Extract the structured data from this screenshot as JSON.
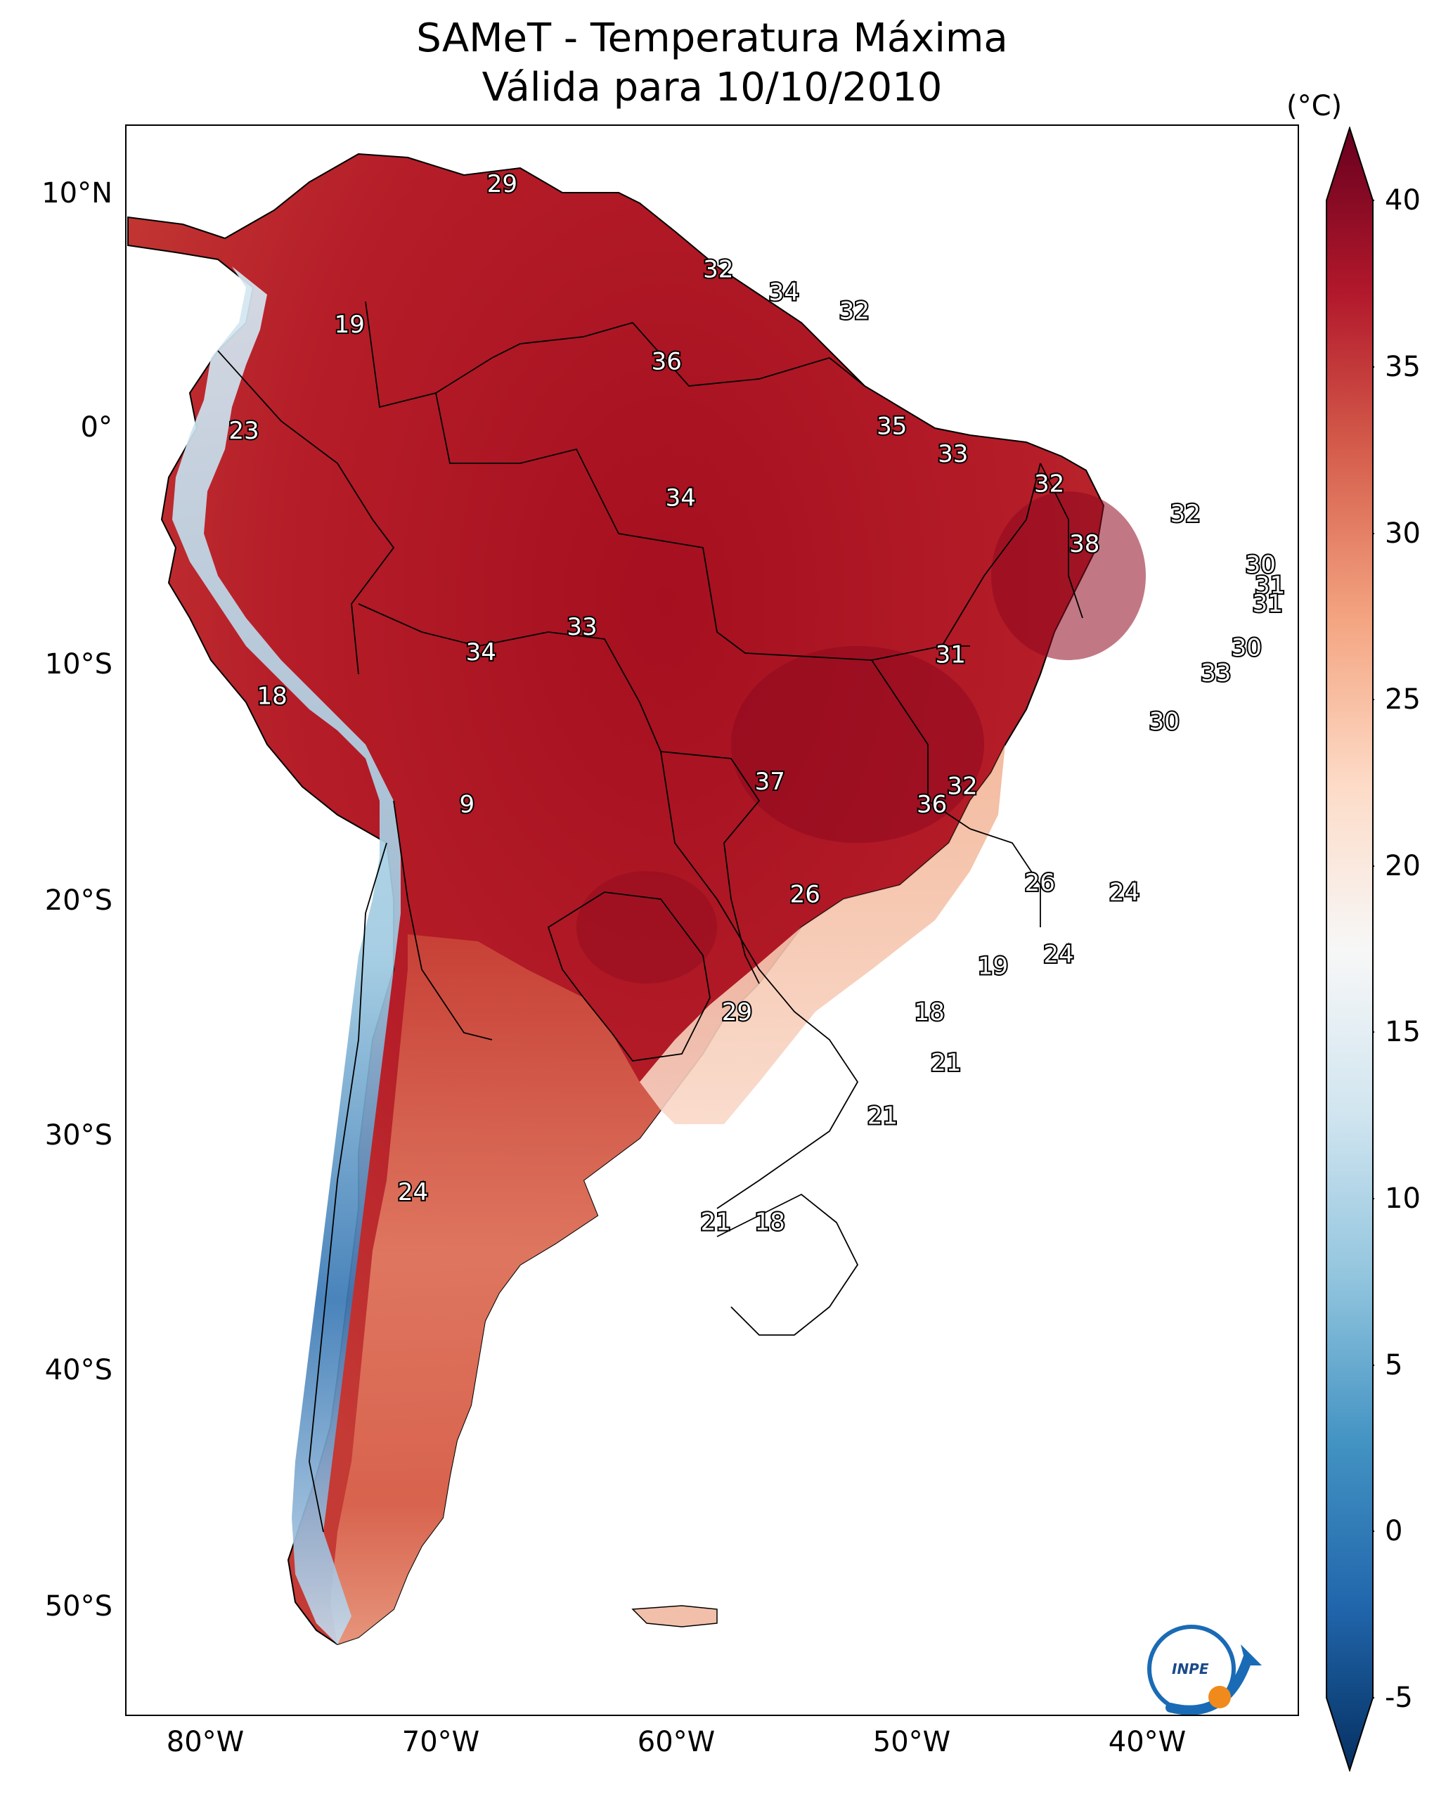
{
  "title": {
    "line1": "SAMeT - Temperatura Máxima",
    "line2": "Válida para 10/10/2010"
  },
  "colorbar": {
    "unit": "(°C)",
    "range": [
      -5,
      40
    ],
    "ticks": [
      "40",
      "35",
      "30",
      "25",
      "20",
      "15",
      "10",
      "5",
      "0",
      "-5"
    ],
    "colors": [
      "#053061",
      "#2166ac",
      "#4393c3",
      "#92c5de",
      "#d1e5f0",
      "#f7f7f7",
      "#fddbc7",
      "#f4a582",
      "#d6604d",
      "#b2182b",
      "#67001f"
    ]
  },
  "latitude_labels": [
    "10°N",
    "0°",
    "10°S",
    "20°S",
    "30°S",
    "40°S",
    "50°S"
  ],
  "longitude_labels": [
    "80°W",
    "70°W",
    "60°W",
    "50°W",
    "40°W"
  ],
  "map_extent": {
    "lon": [
      -83,
      -33
    ],
    "lat": [
      -56,
      13
    ]
  },
  "temperature_labels": [
    {
      "text": "29",
      "lon": -67,
      "lat": 10.5
    },
    {
      "text": "32",
      "lon": -57.8,
      "lat": 6.8
    },
    {
      "text": "34",
      "lon": -55,
      "lat": 5.8
    },
    {
      "text": "32",
      "lon": -52,
      "lat": 5.0
    },
    {
      "text": "19",
      "lon": -73.5,
      "lat": 4.4
    },
    {
      "text": "36",
      "lon": -60,
      "lat": 2.8
    },
    {
      "text": "35",
      "lon": -50.4,
      "lat": 0
    },
    {
      "text": "23",
      "lon": -78,
      "lat": -0.2
    },
    {
      "text": "33",
      "lon": -47.8,
      "lat": -1.2
    },
    {
      "text": "34",
      "lon": -59.4,
      "lat": -3.1
    },
    {
      "text": "32",
      "lon": -43.7,
      "lat": -2.5
    },
    {
      "text": "32",
      "lon": -37.9,
      "lat": -3.8
    },
    {
      "text": "38",
      "lon": -42.2,
      "lat": -5.1
    },
    {
      "text": "30",
      "lon": -34.7,
      "lat": -6.0
    },
    {
      "text": "31",
      "lon": -34.3,
      "lat": -6.9
    },
    {
      "text": "31",
      "lon": -34.4,
      "lat": -7.7
    },
    {
      "text": "33",
      "lon": -63.6,
      "lat": -8.7
    },
    {
      "text": "34",
      "lon": -67.9,
      "lat": -9.8
    },
    {
      "text": "31",
      "lon": -47.9,
      "lat": -9.9
    },
    {
      "text": "30",
      "lon": -35.3,
      "lat": -9.6
    },
    {
      "text": "33",
      "lon": -36.6,
      "lat": -10.7
    },
    {
      "text": "18",
      "lon": -76.8,
      "lat": -11.7
    },
    {
      "text": "30",
      "lon": -38.8,
      "lat": -12.8
    },
    {
      "text": "37",
      "lon": -55.6,
      "lat": -15.4
    },
    {
      "text": "32",
      "lon": -47.4,
      "lat": -15.6
    },
    {
      "text": "36",
      "lon": -48.7,
      "lat": -16.4
    },
    {
      "text": "9",
      "lon": -68.5,
      "lat": -16.4
    },
    {
      "text": "26",
      "lon": -44.1,
      "lat": -19.8
    },
    {
      "text": "24",
      "lon": -40.5,
      "lat": -20.2
    },
    {
      "text": "26",
      "lon": -54.1,
      "lat": -20.3
    },
    {
      "text": "24",
      "lon": -43.3,
      "lat": -22.9
    },
    {
      "text": "19",
      "lon": -46.1,
      "lat": -23.4
    },
    {
      "text": "29",
      "lon": -57,
      "lat": -25.4
    },
    {
      "text": "18",
      "lon": -48.8,
      "lat": -25.4
    },
    {
      "text": "21",
      "lon": -48.1,
      "lat": -27.6
    },
    {
      "text": "21",
      "lon": -50.8,
      "lat": -29.9
    },
    {
      "text": "24",
      "lon": -70.8,
      "lat": -33.2
    },
    {
      "text": "21",
      "lon": -57.9,
      "lat": -34.5
    },
    {
      "text": "18",
      "lon": -55.6,
      "lat": -34.5
    }
  ],
  "logo": {
    "text": "INPE"
  }
}
